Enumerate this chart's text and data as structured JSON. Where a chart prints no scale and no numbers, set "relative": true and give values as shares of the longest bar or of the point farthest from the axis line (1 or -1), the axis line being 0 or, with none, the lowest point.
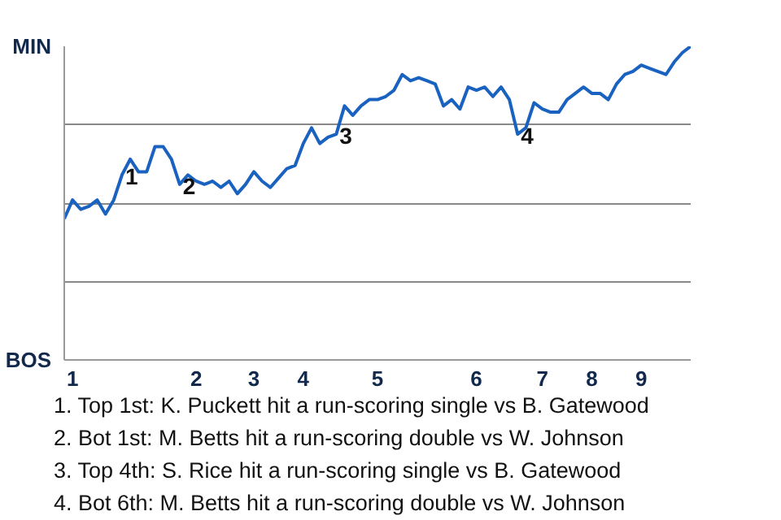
{
  "chart_data": {
    "type": "line",
    "relative": true,
    "categories": [
      null,
      "1",
      null,
      null,
      null,
      null,
      null,
      null,
      null,
      null,
      null,
      null,
      null,
      null,
      null,
      null,
      "2",
      null,
      null,
      null,
      null,
      null,
      null,
      "3",
      null,
      null,
      null,
      null,
      null,
      "4",
      null,
      null,
      null,
      null,
      null,
      null,
      null,
      null,
      "5",
      null,
      null,
      null,
      null,
      null,
      null,
      null,
      null,
      null,
      null,
      null,
      "6",
      null,
      null,
      null,
      null,
      null,
      null,
      null,
      "7",
      null,
      null,
      null,
      null,
      null,
      "8",
      null,
      null,
      null,
      null,
      null,
      "9",
      null,
      null,
      null,
      null,
      null,
      null
    ],
    "series": [
      {
        "color": "#1a62c0",
        "values": [
          0.45,
          0.51,
          0.48,
          0.49,
          0.51,
          0.465,
          0.51,
          0.59,
          0.64,
          0.6,
          0.6,
          0.68,
          0.68,
          0.64,
          0.56,
          0.59,
          0.57,
          0.56,
          0.57,
          0.55,
          0.57,
          0.53,
          0.56,
          0.6,
          0.57,
          0.55,
          0.58,
          0.61,
          0.62,
          0.69,
          0.74,
          0.69,
          0.71,
          0.72,
          0.81,
          0.78,
          0.81,
          0.83,
          0.83,
          0.84,
          0.86,
          0.91,
          0.89,
          0.9,
          0.89,
          0.88,
          0.81,
          0.83,
          0.8,
          0.87,
          0.86,
          0.87,
          0.84,
          0.87,
          0.83,
          0.72,
          0.74,
          0.82,
          0.8,
          0.79,
          0.79,
          0.83,
          0.85,
          0.87,
          0.85,
          0.85,
          0.83,
          0.88,
          0.91,
          0.92,
          0.94,
          0.93,
          0.92,
          0.91,
          0.95,
          0.98,
          1.0
        ],
        "name": null
      }
    ],
    "grid": "y",
    "marker": "none",
    "line_style": "solid",
    "annotations": [
      {
        "text": "1",
        "y": 0.59
      },
      {
        "text": "2",
        "y": 0.56
      },
      {
        "text": "3",
        "y": 0.72
      },
      {
        "text": "4",
        "y": 0.72
      },
      "MIN",
      "BOS",
      "1. Top 1st: K. Puckett hit a run-scoring single vs B. Gatewood",
      "2. Bot 1st: M. Betts hit a run-scoring double vs W. Johnson",
      "3. Top 4th: S. Rice hit a run-scoring single vs B. Gatewood",
      "4. Bot 6th: M. Betts hit a run-scoring double vs W. Johnson"
    ]
  }
}
